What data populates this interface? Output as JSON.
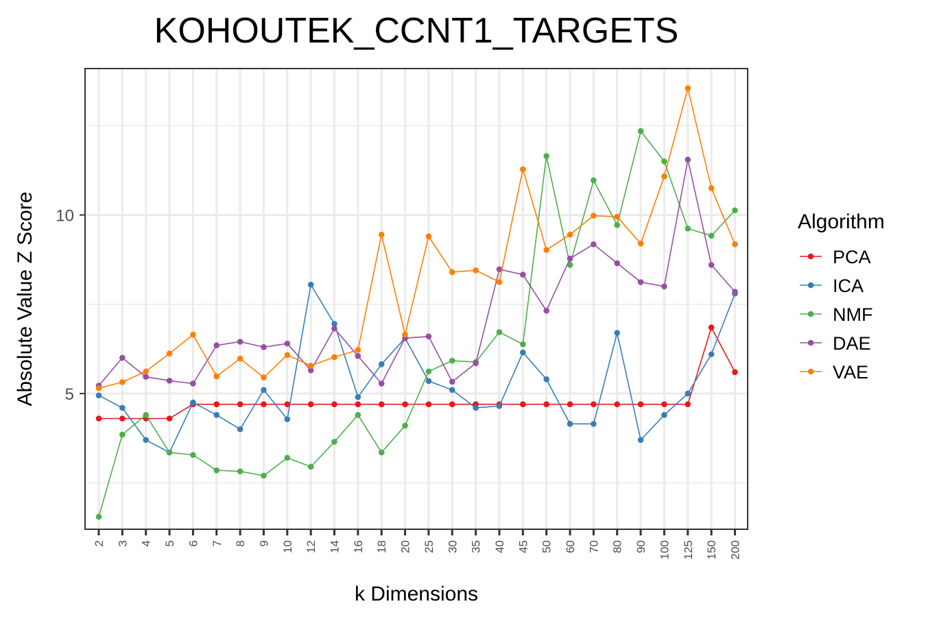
{
  "chart_data": {
    "type": "line",
    "title": "KOHOUTEK_CCNT1_TARGETS",
    "xlabel": "k Dimensions",
    "ylabel": "Absolute Value Z Score",
    "categories": [
      "2",
      "3",
      "4",
      "5",
      "6",
      "7",
      "8",
      "9",
      "10",
      "12",
      "14",
      "16",
      "18",
      "20",
      "25",
      "30",
      "35",
      "40",
      "45",
      "50",
      "60",
      "70",
      "80",
      "90",
      "100",
      "125",
      "150",
      "200"
    ],
    "ylim": [
      1.2,
      14.1
    ],
    "yticks": [
      5,
      10
    ],
    "grid": true,
    "legend": {
      "title": "Algorithm",
      "position": "right"
    },
    "series": [
      {
        "name": "PCA",
        "color": "#e41a1c",
        "values": [
          4.3,
          4.3,
          4.3,
          4.3,
          4.7,
          4.7,
          4.7,
          4.7,
          4.7,
          4.7,
          4.7,
          4.7,
          4.7,
          4.7,
          4.7,
          4.7,
          4.7,
          4.7,
          4.7,
          4.7,
          4.7,
          4.7,
          4.7,
          4.7,
          4.7,
          4.7,
          6.85,
          5.6
        ]
      },
      {
        "name": "ICA",
        "color": "#377eb8",
        "values": [
          4.95,
          4.6,
          3.7,
          3.35,
          4.75,
          4.4,
          4.0,
          5.1,
          4.28,
          8.05,
          6.95,
          4.9,
          5.82,
          6.55,
          5.35,
          5.1,
          4.6,
          4.65,
          6.15,
          5.4,
          4.15,
          4.15,
          6.7,
          3.7,
          4.4,
          5.0,
          6.1,
          7.8
        ]
      },
      {
        "name": "NMF",
        "color": "#4daf4a",
        "values": [
          1.55,
          3.85,
          4.4,
          3.35,
          3.28,
          2.85,
          2.82,
          2.7,
          3.2,
          2.95,
          3.65,
          4.4,
          3.35,
          4.1,
          5.62,
          5.92,
          5.88,
          6.72,
          6.38,
          11.65,
          8.6,
          10.97,
          9.72,
          12.35,
          11.5,
          9.62,
          9.42,
          10.13
        ]
      },
      {
        "name": "DAE",
        "color": "#984ea3",
        "values": [
          5.22,
          6.0,
          5.47,
          5.36,
          5.28,
          6.35,
          6.45,
          6.3,
          6.4,
          5.65,
          6.82,
          6.05,
          5.28,
          6.55,
          6.6,
          5.33,
          5.85,
          8.48,
          8.33,
          7.32,
          8.78,
          9.18,
          8.65,
          8.12,
          8.0,
          11.55,
          8.6,
          7.85
        ]
      },
      {
        "name": "VAE",
        "color": "#ff7f00",
        "values": [
          5.15,
          5.32,
          5.62,
          6.12,
          6.65,
          5.48,
          5.98,
          5.45,
          6.08,
          5.78,
          6.02,
          6.22,
          9.45,
          6.65,
          9.4,
          8.4,
          8.45,
          8.12,
          11.28,
          9.02,
          9.45,
          9.98,
          9.95,
          9.2,
          11.08,
          13.55,
          10.75,
          9.18
        ]
      }
    ]
  }
}
